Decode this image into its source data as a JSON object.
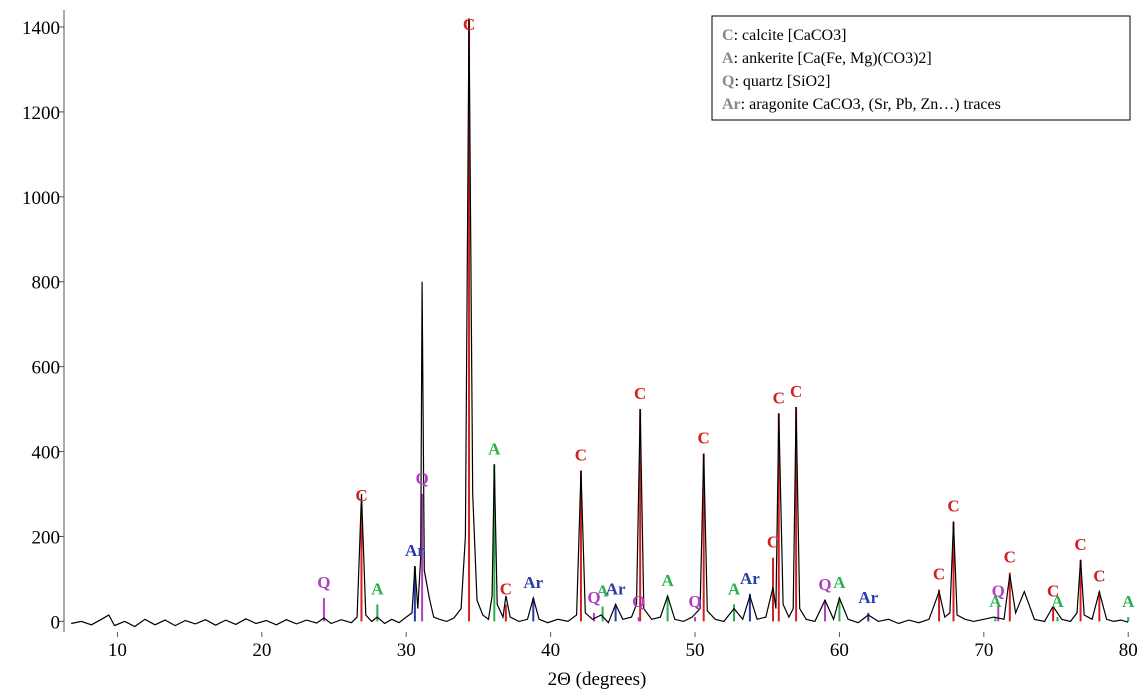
{
  "chart_data": {
    "type": "line",
    "xlabel": "2Θ (degrees)",
    "xlim": [
      6.3,
      80.4
    ],
    "ylim": [
      -25,
      1440
    ],
    "xticks": [
      10,
      20,
      30,
      40,
      50,
      60,
      70,
      80
    ],
    "yticks": [
      0,
      200,
      400,
      600,
      800,
      1000,
      1200,
      1400
    ],
    "color": "#000000",
    "x": [
      6.8,
      7.5,
      8.2,
      8.9,
      9.4,
      9.8,
      10.5,
      11.2,
      11.9,
      12.6,
      13.3,
      14,
      14.7,
      15.4,
      16.1,
      16.8,
      17.5,
      18.2,
      18.9,
      19.6,
      20.3,
      21,
      21.7,
      22.4,
      23.1,
      23.8,
      24.3,
      24.8,
      25.5,
      26.2,
      26.6,
      26.9,
      27.2,
      27.6,
      28,
      28.5,
      29,
      29.5,
      30,
      30.4,
      30.6,
      30.8,
      31,
      31.1,
      31.25,
      31.6,
      31.9,
      32.3,
      32.8,
      33.3,
      33.8,
      34.1,
      34.35,
      34.6,
      34.9,
      35.3,
      35.7,
      35.95,
      36.1,
      36.3,
      36.7,
      36.9,
      37.2,
      37.8,
      38.4,
      38.8,
      39.2,
      39.8,
      40.5,
      41.2,
      41.8,
      42.1,
      42.4,
      42.9,
      43.5,
      44,
      44.5,
      45,
      45.6,
      45.95,
      46.2,
      46.45,
      47,
      47.6,
      48.1,
      48.6,
      49.2,
      49.8,
      50.35,
      50.6,
      50.85,
      51.4,
      52,
      52.7,
      53.3,
      53.8,
      54.3,
      54.9,
      55.4,
      55.6,
      55.8,
      56.1,
      56.5,
      56.8,
      57,
      57.25,
      57.7,
      58.3,
      59,
      59.6,
      60,
      60.6,
      61.3,
      62,
      62.7,
      63.4,
      64.1,
      64.8,
      65.5,
      66.2,
      66.9,
      67.3,
      67.65,
      67.9,
      68.15,
      68.7,
      69.3,
      70,
      70.7,
      71.4,
      71.8,
      72.2,
      72.8,
      73.5,
      74.2,
      74.8,
      75.4,
      76,
      76.45,
      76.7,
      76.95,
      77.5,
      78,
      78.5,
      79,
      79.5,
      80
    ],
    "values": [
      -5,
      0,
      -8,
      5,
      15,
      -10,
      0,
      -12,
      5,
      -8,
      3,
      -10,
      2,
      -6,
      4,
      -9,
      3,
      -7,
      6,
      -5,
      2,
      -8,
      4,
      -6,
      3,
      -4,
      8,
      -5,
      4,
      -3,
      10,
      300,
      15,
      0,
      10,
      -5,
      5,
      -3,
      10,
      20,
      130,
      30,
      150,
      800,
      120,
      55,
      10,
      5,
      0,
      8,
      30,
      200,
      1420,
      300,
      50,
      15,
      5,
      60,
      370,
      40,
      10,
      60,
      10,
      0,
      5,
      55,
      5,
      -3,
      5,
      0,
      15,
      355,
      20,
      5,
      15,
      -3,
      40,
      5,
      10,
      40,
      500,
      30,
      5,
      10,
      60,
      5,
      0,
      10,
      30,
      395,
      25,
      5,
      0,
      30,
      5,
      60,
      5,
      10,
      80,
      30,
      490,
      40,
      10,
      30,
      505,
      30,
      5,
      0,
      50,
      5,
      55,
      5,
      -3,
      15,
      0,
      5,
      -5,
      3,
      -3,
      5,
      70,
      10,
      20,
      235,
      15,
      5,
      0,
      5,
      10,
      5,
      110,
      20,
      70,
      5,
      0,
      35,
      5,
      0,
      20,
      145,
      15,
      5,
      70,
      5,
      0,
      3,
      -2
    ],
    "phases": [
      {
        "symbol": "C",
        "description": ": calcite [CaCO3]",
        "color": "#d42020",
        "x": [
          26.9,
          34.35,
          36.9,
          42.1,
          46.2,
          50.6,
          55.4,
          55.8,
          57,
          66.9,
          67.9,
          71.8,
          74.8,
          76.7,
          78
        ],
        "values": [
          260,
          1420,
          40,
          355,
          500,
          395,
          150,
          490,
          505,
          75,
          235,
          115,
          35,
          145,
          70
        ]
      },
      {
        "symbol": "A",
        "description": ": ankerite [Ca(Fe, Mg)(CO3)2]",
        "color": "#2ab04a",
        "x": [
          28,
          36.1,
          43.6,
          48.1,
          52.7,
          60,
          70.8,
          75.1,
          80
        ],
        "values": [
          40,
          370,
          35,
          60,
          40,
          55,
          10,
          10,
          10
        ]
      },
      {
        "symbol": "Q",
        "description": ": quartz [SiO2]",
        "color": "#b040c0",
        "x": [
          24.3,
          31.1,
          43,
          46.1,
          50,
          59,
          71
        ],
        "values": [
          55,
          300,
          20,
          10,
          10,
          50,
          35
        ]
      },
      {
        "symbol": "Ar",
        "description": ": aragonite CaCO3, (Sr, Pb, Zn…) traces",
        "color": "#2a3aa8",
        "x": [
          30.6,
          38.8,
          44.5,
          53.8,
          62
        ],
        "values": [
          130,
          55,
          40,
          65,
          20
        ]
      }
    ]
  }
}
